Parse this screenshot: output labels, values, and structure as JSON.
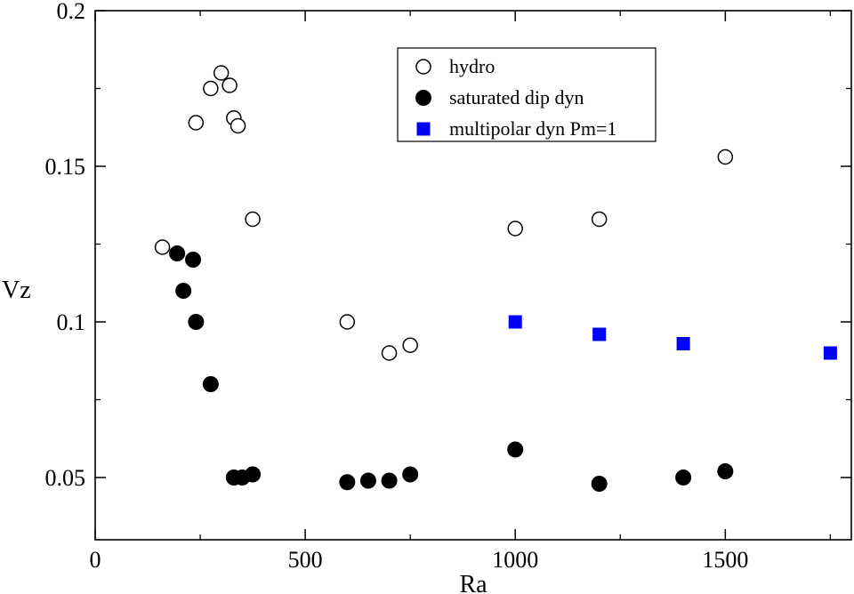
{
  "chart_data": {
    "type": "scatter",
    "title": "",
    "xlabel": "Ra",
    "ylabel": "Vz",
    "xlim": [
      0,
      1800
    ],
    "ylim": [
      0.03,
      0.2
    ],
    "x_ticks": [
      0,
      500,
      1000,
      1500
    ],
    "x_tick_labels": [
      "0",
      "500",
      "1000",
      "1500"
    ],
    "y_ticks": [
      0.05,
      0.1,
      0.15,
      0.2
    ],
    "y_tick_labels": [
      "0.05",
      "0.1",
      "0.15",
      "0.2"
    ],
    "grid": false,
    "legend_position": "top-center",
    "series": [
      {
        "name": "hydro",
        "marker": "open-circle",
        "color": "#000000",
        "points": [
          [
            160,
            0.124
          ],
          [
            240,
            0.164
          ],
          [
            275,
            0.175
          ],
          [
            300,
            0.18
          ],
          [
            320,
            0.176
          ],
          [
            330,
            0.1655
          ],
          [
            340,
            0.163
          ],
          [
            375,
            0.133
          ],
          [
            600,
            0.1
          ],
          [
            700,
            0.09
          ],
          [
            750,
            0.0925
          ],
          [
            1000,
            0.13
          ],
          [
            1200,
            0.133
          ],
          [
            1500,
            0.153
          ]
        ]
      },
      {
        "name": "saturated dip dyn",
        "marker": "filled-circle",
        "color": "#000000",
        "points": [
          [
            195,
            0.122
          ],
          [
            210,
            0.11
          ],
          [
            233,
            0.12
          ],
          [
            240,
            0.1
          ],
          [
            275,
            0.08
          ],
          [
            330,
            0.05
          ],
          [
            350,
            0.05
          ],
          [
            375,
            0.051
          ],
          [
            600,
            0.0485
          ],
          [
            650,
            0.049
          ],
          [
            700,
            0.049
          ],
          [
            750,
            0.051
          ],
          [
            1000,
            0.059
          ],
          [
            1200,
            0.048
          ],
          [
            1400,
            0.05
          ],
          [
            1500,
            0.052
          ]
        ]
      },
      {
        "name": "multipolar dyn Pm=1",
        "marker": "filled-square",
        "color": "#0000ff",
        "points": [
          [
            1000,
            0.1
          ],
          [
            1200,
            0.096
          ],
          [
            1400,
            0.093
          ],
          [
            1750,
            0.09
          ]
        ]
      }
    ]
  }
}
